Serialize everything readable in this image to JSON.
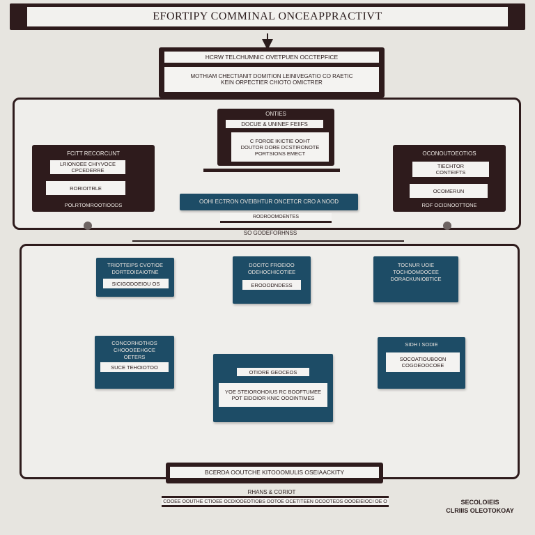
{
  "title": "EFORTIPY COMMINAL ONCEAPPRACTIVT",
  "header_box": {
    "heading": "HCRW TELCHUMNIC OVETPUEN OCCTEPFICE",
    "line1": "MOTHIAM CHECTIANIT DOMITION LEINIVEGATIO CO RAETIC",
    "line2": "KEIN ORPECTIER CHIOTO OMICTRER"
  },
  "top_section": {
    "center_box": {
      "heading": "ONTIES",
      "label": "DOCUE & UNINEF FEIIFS",
      "line1": "C FOROE IKICTIE OOHT",
      "line2": "DOUTOR DORE DCSTIRONOTE",
      "line3": "PORTSIONS EMECT"
    },
    "left_box": {
      "heading": "FCITT  RECORCUNT",
      "label1": "LRIONOEE CHIYVOCE",
      "label2": "CPCEDERRE",
      "label3": "RORIOITRLE",
      "footer": "POLRTOMROOTIOODS"
    },
    "right_box": {
      "heading": "OCONOUTOEOTIOS",
      "label1": "TIECHTOR",
      "label2": "CONTEIFTS",
      "label3": "OCOMERUN",
      "footer": "ROF OCIDNOOTTONE"
    },
    "process_bar": "OOHI ECTRON OVEIBHTUR ONCETCR CRO A NOOD",
    "process_sub": "RODROOMOENTES"
  },
  "middle_caption": "SO GODEFORHNSS",
  "bottom_section": {
    "box_left_top": {
      "line1": "TRIOTTEIPS CVOTIOE",
      "line2": "DORTEOIEAIOTNE",
      "label": "SICIGODOEIOU OS"
    },
    "box_center_top": {
      "line1": "DOCITC FROEIOO",
      "line2": "ODEHOCHICOTIEE",
      "label": "EROOODNDESS"
    },
    "box_right_top": {
      "line1": "TOCNUR UOIE",
      "line2": "TOCHOOMDOCEE",
      "line3": "DORACKUNIOBTICE"
    },
    "box_left_bottom": {
      "line1": "CONCORHOTHOS",
      "line2": "CHOOOEEHGCE",
      "line3": "OETERS",
      "label": "SUCE TEHOIOTOO"
    },
    "box_center_bottom": {
      "heading": "OTIORE GEOCEOS",
      "label1": "YOE STEIOROHOIUS RC BOOFTUMEE",
      "label2": "POT EIDOIOR KNIC OOOINTIMES"
    },
    "box_right_bottom": {
      "heading": "SIDH I SODIE",
      "label1": "SOCOATIOUBOON",
      "label2": "COGOEOOCOEE"
    }
  },
  "footer_bar": "BCERDA OOUTCHE KITOOOMULIS OSEIAACKITY",
  "footer_caption": "RHANS & CORIOT",
  "footer_strip": "COOEE OOUTHE CTIOEE OCDIOOEOTIOBS OOTOE OCETITEEN OCOOTEOS OOOEIEIOCI OE O",
  "corner_note": {
    "line1": "SECOLOIEIS",
    "line2": "CLRIIIS OLEOTOKOAY"
  },
  "colors": {
    "dark_brown": "#2e1b1c",
    "teal": "#1d4c66",
    "background": "#e7e5e0",
    "label_white": "#f4f3f1"
  }
}
